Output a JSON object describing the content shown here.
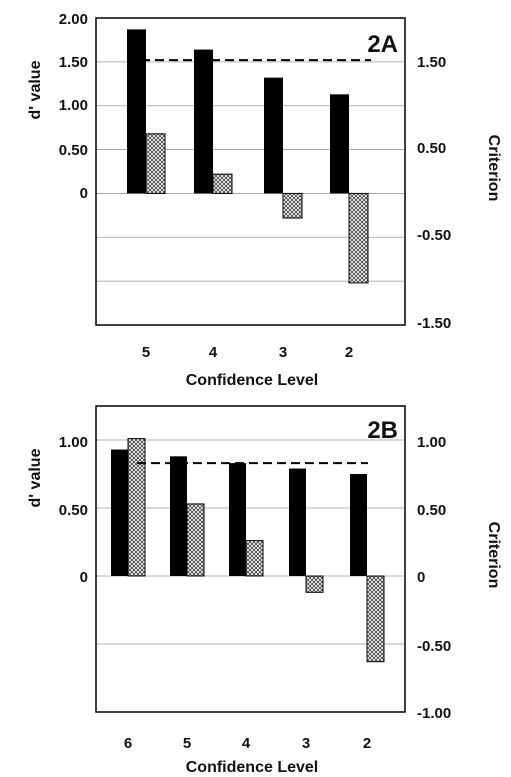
{
  "chart_data": [
    {
      "type": "bar",
      "title": "",
      "panel_label": "2A",
      "xlabel": "Confidence Level",
      "ylabel": "d' value",
      "ylabel_right": "Criterion",
      "categories": [
        "5",
        "4",
        "3",
        "2"
      ],
      "ylim": [
        -1.5,
        2.0
      ],
      "yticks_left": [
        "2.00",
        "1.50",
        "1.00",
        "0.50",
        "0"
      ],
      "yticks_right": [
        "1.50",
        "0.50",
        "-0.50",
        "-1.50"
      ],
      "series": [
        {
          "values": [
            1.87,
            1.64,
            1.32,
            1.13
          ],
          "fill": "#000000"
        },
        {
          "values": [
            0.68,
            0.22,
            -0.28,
            -1.02
          ],
          "fill": "hatch"
        }
      ],
      "dashed_line": 1.52,
      "grid": true,
      "legend": false
    },
    {
      "type": "bar",
      "title": "",
      "panel_label": "2B",
      "xlabel": "Confidence Level",
      "ylabel": "d' value",
      "ylabel_right": "Criterion",
      "categories": [
        "6",
        "5",
        "4",
        "3",
        "2"
      ],
      "ylim": [
        -1.0,
        1.25
      ],
      "yticks_left": [
        "1.00",
        "0.50",
        "0"
      ],
      "yticks_right": [
        "1.00",
        "0.50",
        "0",
        "-0.50",
        "-1.00"
      ],
      "series": [
        {
          "values": [
            0.93,
            0.88,
            0.83,
            0.79,
            0.75
          ],
          "fill": "#000000"
        },
        {
          "values": [
            1.01,
            0.53,
            0.26,
            -0.12,
            -0.63
          ],
          "fill": "hatch"
        }
      ],
      "dashed_line": 0.83,
      "grid": true,
      "legend": false
    }
  ]
}
